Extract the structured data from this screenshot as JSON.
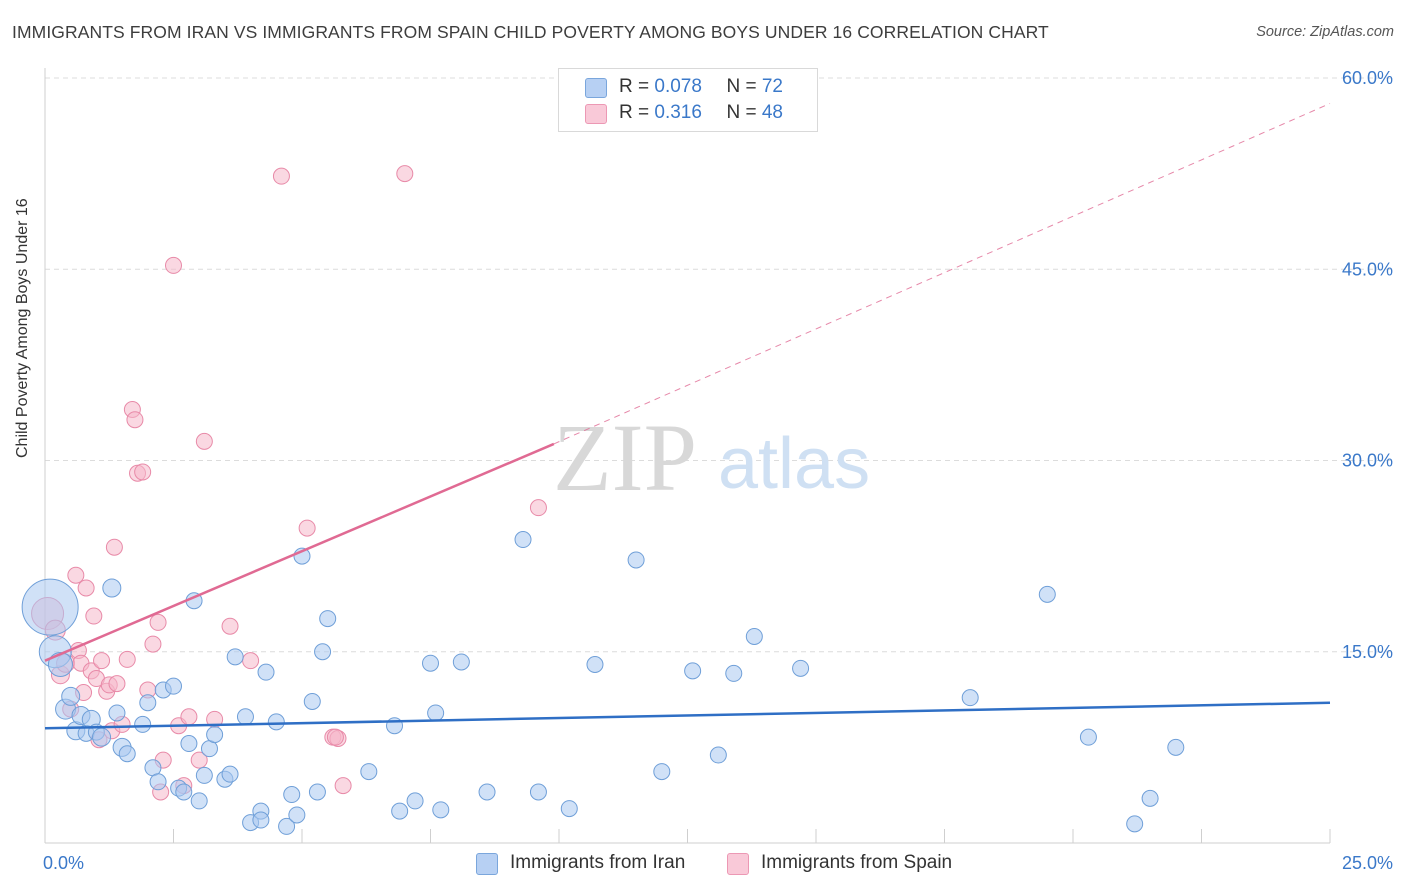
{
  "title": "IMMIGRANTS FROM IRAN VS IMMIGRANTS FROM SPAIN CHILD POVERTY AMONG BOYS UNDER 16 CORRELATION CHART",
  "source": "Source: ZipAtlas.com",
  "watermark": {
    "zip": "ZIP",
    "atlas": "atlas"
  },
  "legend": {
    "iran": {
      "r_label": "R = ",
      "r_value": "0.078",
      "n_label": "N = ",
      "n_value": "72"
    },
    "spain": {
      "r_label": "R = ",
      "r_value": "0.316",
      "n_label": "N = ",
      "n_value": "48"
    }
  },
  "bottom_legend": {
    "iran": "Immigrants from Iran",
    "spain": "Immigrants from Spain"
  },
  "colors": {
    "iran_fill": "#a9c8f0",
    "iran_stroke": "#6f9fd8",
    "iran_line": "#2f6fc5",
    "spain_fill": "#f6b8cb",
    "spain_stroke": "#e88aa8",
    "spain_line": "#e06a93",
    "tick_label": "#3a78c9",
    "grid": "#dcdcdc"
  },
  "chart_data": {
    "type": "scatter",
    "title": "IMMIGRANTS FROM IRAN VS IMMIGRANTS FROM SPAIN CHILD POVERTY AMONG BOYS UNDER 16 CORRELATION CHART",
    "xlabel": "",
    "ylabel": "Child Poverty Among Boys Under 16",
    "xlim": [
      0,
      25
    ],
    "ylim": [
      0,
      60
    ],
    "x_tick_labels": [
      "0.0%",
      "25.0%"
    ],
    "y_ticks": [
      15,
      30,
      45,
      60
    ],
    "y_tick_labels": [
      "15.0%",
      "30.0%",
      "45.0%",
      "60.0%"
    ],
    "grid": true,
    "legend_placement": "top-center",
    "series": [
      {
        "name": "Immigrants from Iran",
        "r": 0.078,
        "n": 72,
        "trend": {
          "x": [
            0,
            25
          ],
          "y": [
            9.0,
            11.0
          ],
          "dashed_extension": false
        },
        "points": [
          [
            0.1,
            18.5,
            28
          ],
          [
            0.2,
            15.0,
            16
          ],
          [
            0.3,
            14.0,
            12
          ],
          [
            0.4,
            10.5,
            10
          ],
          [
            0.5,
            11.5,
            9
          ],
          [
            0.6,
            8.8,
            9
          ],
          [
            0.7,
            10.0,
            9
          ],
          [
            0.8,
            8.6,
            8
          ],
          [
            0.9,
            9.7,
            9
          ],
          [
            1.0,
            8.7,
            8
          ],
          [
            1.1,
            8.3,
            9
          ],
          [
            1.3,
            20.0,
            9
          ],
          [
            1.4,
            10.2,
            8
          ],
          [
            1.5,
            7.5,
            9
          ],
          [
            1.6,
            7.0,
            8
          ],
          [
            1.9,
            9.3,
            8
          ],
          [
            2.0,
            11.0,
            8
          ],
          [
            2.1,
            5.9,
            8
          ],
          [
            2.2,
            4.8,
            8
          ],
          [
            2.3,
            12.0,
            8
          ],
          [
            2.5,
            12.3,
            8
          ],
          [
            2.6,
            4.3,
            8
          ],
          [
            2.7,
            4.0,
            8
          ],
          [
            2.8,
            7.8,
            8
          ],
          [
            2.9,
            19.0,
            8
          ],
          [
            3.0,
            3.3,
            8
          ],
          [
            3.1,
            5.3,
            8
          ],
          [
            3.2,
            7.4,
            8
          ],
          [
            3.3,
            8.5,
            8
          ],
          [
            3.5,
            5.0,
            8
          ],
          [
            3.6,
            5.4,
            8
          ],
          [
            3.7,
            14.6,
            8
          ],
          [
            3.9,
            9.9,
            8
          ],
          [
            4.0,
            1.6,
            8
          ],
          [
            4.2,
            2.5,
            8
          ],
          [
            4.2,
            1.8,
            8
          ],
          [
            4.3,
            13.4,
            8
          ],
          [
            4.5,
            9.5,
            8
          ],
          [
            4.7,
            1.3,
            8
          ],
          [
            4.8,
            3.8,
            8
          ],
          [
            4.9,
            2.2,
            8
          ],
          [
            5.0,
            22.5,
            8
          ],
          [
            5.2,
            11.1,
            8
          ],
          [
            5.3,
            4.0,
            8
          ],
          [
            5.4,
            15.0,
            8
          ],
          [
            5.5,
            17.6,
            8
          ],
          [
            6.3,
            5.6,
            8
          ],
          [
            6.8,
            9.2,
            8
          ],
          [
            6.9,
            2.5,
            8
          ],
          [
            7.2,
            3.3,
            8
          ],
          [
            7.5,
            14.1,
            8
          ],
          [
            7.6,
            10.2,
            8
          ],
          [
            7.7,
            2.6,
            8
          ],
          [
            8.1,
            14.2,
            8
          ],
          [
            8.6,
            4.0,
            8
          ],
          [
            9.3,
            23.8,
            8
          ],
          [
            9.6,
            4.0,
            8
          ],
          [
            10.2,
            2.7,
            8
          ],
          [
            10.7,
            14.0,
            8
          ],
          [
            11.5,
            22.2,
            8
          ],
          [
            12.0,
            5.6,
            8
          ],
          [
            12.6,
            13.5,
            8
          ],
          [
            13.1,
            6.9,
            8
          ],
          [
            13.4,
            13.3,
            8
          ],
          [
            13.8,
            16.2,
            8
          ],
          [
            14.7,
            13.7,
            8
          ],
          [
            18.0,
            11.4,
            8
          ],
          [
            19.5,
            19.5,
            8
          ],
          [
            20.3,
            8.3,
            8
          ],
          [
            21.2,
            1.5,
            8
          ],
          [
            21.5,
            3.5,
            8
          ],
          [
            22.0,
            7.5,
            8
          ]
        ]
      },
      {
        "name": "Immigrants from Spain",
        "r": 0.316,
        "n": 48,
        "trend": {
          "x": [
            0,
            9.9
          ],
          "y": [
            14.3,
            31.3
          ],
          "extension_x": [
            9.9,
            25
          ],
          "extension_y": [
            31.3,
            58.0
          ]
        },
        "points": [
          [
            0.05,
            18.0,
            16
          ],
          [
            0.2,
            16.7,
            10
          ],
          [
            0.3,
            13.2,
            9
          ],
          [
            0.4,
            14.1,
            9
          ],
          [
            0.5,
            10.5,
            8
          ],
          [
            0.6,
            21.0,
            8
          ],
          [
            0.65,
            15.1,
            8
          ],
          [
            0.7,
            14.1,
            8
          ],
          [
            0.75,
            11.8,
            8
          ],
          [
            0.8,
            20.0,
            8
          ],
          [
            0.9,
            13.5,
            8
          ],
          [
            0.95,
            17.8,
            8
          ],
          [
            1.0,
            12.9,
            8
          ],
          [
            1.05,
            8.1,
            8
          ],
          [
            1.1,
            14.3,
            8
          ],
          [
            1.2,
            11.9,
            8
          ],
          [
            1.25,
            12.4,
            8
          ],
          [
            1.3,
            8.8,
            8
          ],
          [
            1.35,
            23.2,
            8
          ],
          [
            1.4,
            12.5,
            8
          ],
          [
            1.5,
            9.3,
            8
          ],
          [
            1.6,
            14.4,
            8
          ],
          [
            1.7,
            34.0,
            8
          ],
          [
            1.75,
            33.2,
            8
          ],
          [
            1.8,
            29.0,
            8
          ],
          [
            1.9,
            29.1,
            8
          ],
          [
            2.0,
            12.0,
            8
          ],
          [
            2.1,
            15.6,
            8
          ],
          [
            2.2,
            17.3,
            8
          ],
          [
            2.25,
            4.0,
            8
          ],
          [
            2.5,
            45.3,
            8
          ],
          [
            2.6,
            9.2,
            8
          ],
          [
            2.7,
            4.5,
            8
          ],
          [
            2.8,
            9.9,
            8
          ],
          [
            3.0,
            6.5,
            8
          ],
          [
            3.1,
            31.5,
            8
          ],
          [
            3.3,
            9.7,
            8
          ],
          [
            3.6,
            17.0,
            8
          ],
          [
            4.0,
            14.3,
            8
          ],
          [
            4.6,
            52.3,
            8
          ],
          [
            5.1,
            24.7,
            8
          ],
          [
            5.6,
            8.3,
            8
          ],
          [
            5.7,
            8.2,
            8
          ],
          [
            5.8,
            4.5,
            8
          ],
          [
            7.0,
            52.5,
            8
          ],
          [
            9.6,
            26.3,
            8
          ],
          [
            5.65,
            8.3,
            8
          ],
          [
            2.3,
            6.5,
            8
          ]
        ]
      }
    ]
  }
}
